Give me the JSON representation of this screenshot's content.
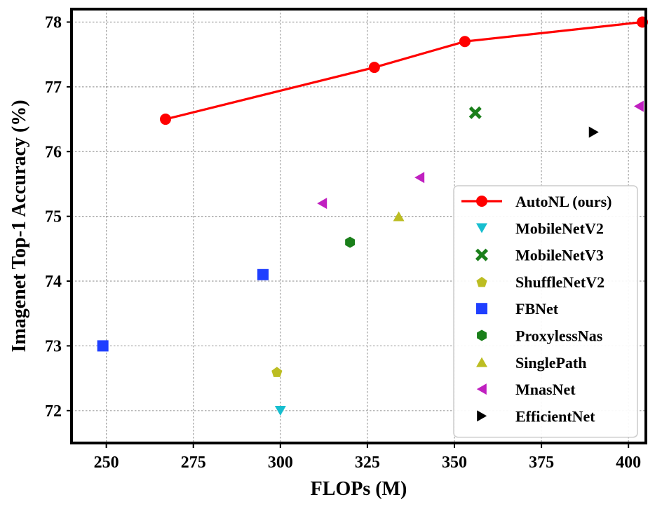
{
  "chart_data": {
    "type": "scatter",
    "title": "",
    "xlabel": "FLOPs (M)",
    "ylabel": "Imagenet Top-1 Accuracy (%)",
    "xlim": [
      240,
      405
    ],
    "ylim": [
      71.5,
      78.2
    ],
    "xticks": [
      250,
      275,
      300,
      325,
      350,
      375,
      400
    ],
    "yticks": [
      72,
      73,
      74,
      75,
      76,
      77,
      78
    ],
    "grid": true,
    "legend_position": "lower-right",
    "series": [
      {
        "name": "AutoNL (ours)",
        "marker": "circle",
        "color": "#ff0000",
        "line": true,
        "points": [
          {
            "x": 267,
            "y": 76.5
          },
          {
            "x": 327,
            "y": 77.3
          },
          {
            "x": 353,
            "y": 77.7
          },
          {
            "x": 404,
            "y": 78.0
          }
        ]
      },
      {
        "name": "MobileNetV2",
        "marker": "triangle-down",
        "color": "#17becf",
        "line": false,
        "points": [
          {
            "x": 300,
            "y": 72.0
          }
        ]
      },
      {
        "name": "MobileNetV3",
        "marker": "x",
        "color": "#1a7f1a",
        "line": false,
        "points": [
          {
            "x": 356,
            "y": 76.6
          }
        ]
      },
      {
        "name": "ShuffleNetV2",
        "marker": "pentagon",
        "color": "#bcbd22",
        "line": false,
        "points": [
          {
            "x": 299,
            "y": 72.6
          }
        ]
      },
      {
        "name": "FBNet",
        "marker": "square",
        "color": "#1f3fff",
        "line": false,
        "points": [
          {
            "x": 249,
            "y": 73.0
          },
          {
            "x": 295,
            "y": 74.1
          }
        ]
      },
      {
        "name": "ProxylessNas",
        "marker": "hexagon",
        "color": "#1a7f1a",
        "line": false,
        "points": [
          {
            "x": 320,
            "y": 74.6
          }
        ]
      },
      {
        "name": "SinglePath",
        "marker": "triangle-up",
        "color": "#bcbd22",
        "line": false,
        "points": [
          {
            "x": 334,
            "y": 75.0
          }
        ]
      },
      {
        "name": "MnasNet",
        "marker": "triangle-left",
        "color": "#c020c0",
        "line": false,
        "points": [
          {
            "x": 312,
            "y": 75.2
          },
          {
            "x": 340,
            "y": 75.6
          },
          {
            "x": 403,
            "y": 76.7
          }
        ]
      },
      {
        "name": "EfficientNet",
        "marker": "triangle-right",
        "color": "#000000",
        "line": false,
        "points": [
          {
            "x": 390,
            "y": 76.3
          }
        ]
      }
    ]
  }
}
